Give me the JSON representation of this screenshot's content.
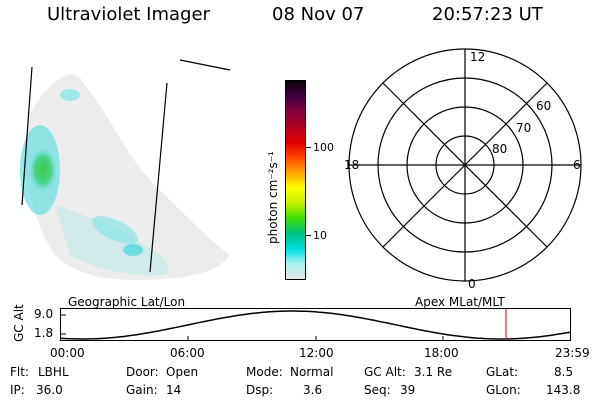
{
  "header": {
    "instrument": "Ultraviolet Imager",
    "date": "08 Nov 07",
    "time": "20:57:23 UT"
  },
  "colorbar": {
    "unit_label": "photon cm⁻²s⁻¹",
    "ticks": [
      "100",
      "10"
    ],
    "colors": [
      "#e8e8e8",
      "#a8f0f0",
      "#00e0e0",
      "#00c080",
      "#40e000",
      "#c0f000",
      "#ffff00",
      "#ffa000",
      "#ff4000",
      "#e00000",
      "#b00020",
      "#800040",
      "#400040",
      "#100010"
    ]
  },
  "polar_plot": {
    "mlt_labels": {
      "top": "12",
      "bottom": "0",
      "left": "18",
      "right": "6"
    },
    "lat_labels": [
      "60",
      "70",
      "80"
    ]
  },
  "altitude_panel": {
    "left_caption": "Geographic Lat/Lon",
    "right_caption": "Apex MLat/MLT",
    "axis_title": "GC Alt",
    "y_ticks": [
      "9.0",
      "1.8"
    ],
    "time_ticks": [
      "00:00",
      "06:00",
      "12:00",
      "18:00",
      "23:59"
    ],
    "marker_color": "#d03030"
  },
  "status": {
    "filter_label": "Flt:",
    "filter_value": "LBHL",
    "door_label": "Door:",
    "door_value": "Open",
    "mode_label": "Mode:",
    "mode_value": "Normal",
    "gcalt_label": "GC Alt:",
    "gcalt_value": "3.1 Re",
    "glat_label": "GLat:",
    "glat_value": "8.5",
    "ip_label": "IP:",
    "ip_value": "36.0",
    "gain_label": "Gain:",
    "gain_value": "14",
    "dsp_label": "Dsp:",
    "dsp_value": "3.6",
    "seq_label": "Seq:",
    "seq_value": "39",
    "glon_label": "GLon:",
    "glon_value": "143.8"
  }
}
